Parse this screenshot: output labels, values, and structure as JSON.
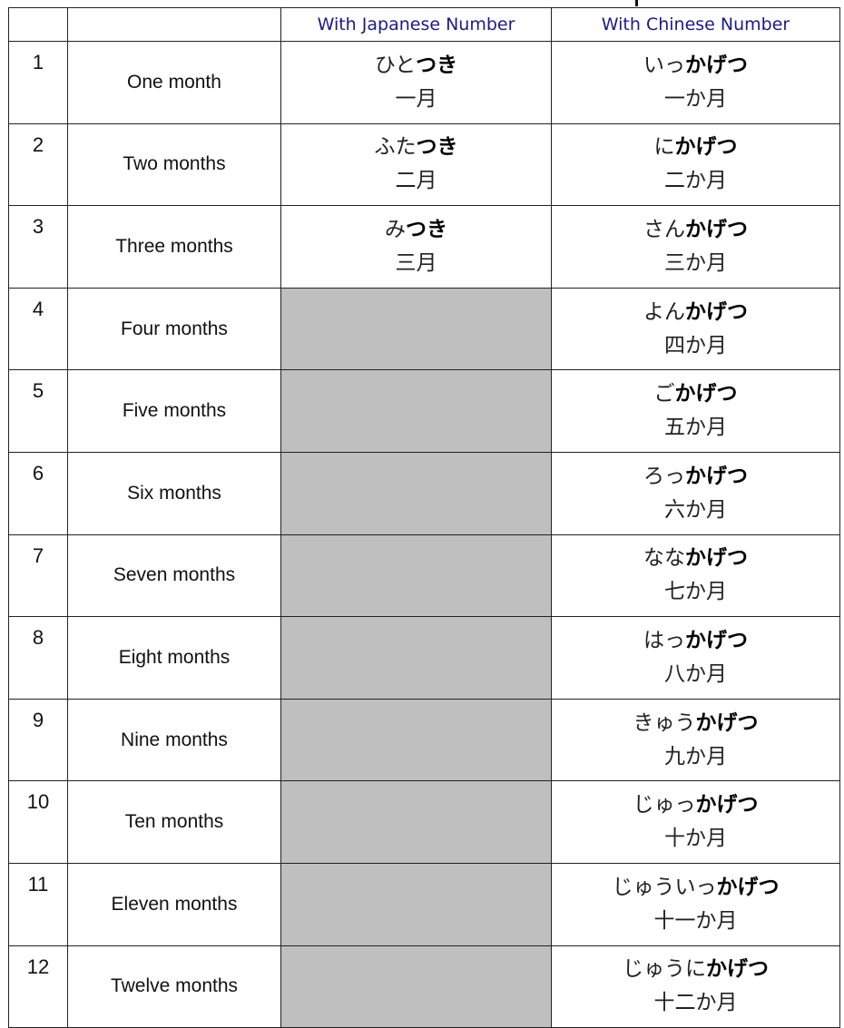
{
  "header": {
    "col1": "",
    "col2": "",
    "japanese": "With Japanese Number",
    "chinese": "With Chinese Number"
  },
  "colors": {
    "header_text": "#1a1a8c",
    "empty_cell": "#bfbfbf",
    "border": "#222222"
  },
  "rows": [
    {
      "num": "1",
      "english": "One month",
      "jp_kana_light": "ひと",
      "jp_kana_bold": "つき",
      "jp_kanji": "一月",
      "cn_kana_light": "いっ",
      "cn_kana_bold": "かげつ",
      "cn_kanji": "一か月"
    },
    {
      "num": "2",
      "english": "Two months",
      "jp_kana_light": "ふた",
      "jp_kana_bold": "つき",
      "jp_kanji": "二月",
      "cn_kana_light": "に",
      "cn_kana_bold": "かげつ",
      "cn_kanji": "二か月"
    },
    {
      "num": "3",
      "english": "Three months",
      "jp_kana_light": "み",
      "jp_kana_bold": "つき",
      "jp_kanji": "三月",
      "cn_kana_light": "さん",
      "cn_kana_bold": "かげつ",
      "cn_kanji": "三か月"
    },
    {
      "num": "4",
      "english": "Four months",
      "cn_kana_light": "よん",
      "cn_kana_bold": "かげつ",
      "cn_kanji": "四か月"
    },
    {
      "num": "5",
      "english": "Five months",
      "cn_kana_light": "ご",
      "cn_kana_bold": "かげつ",
      "cn_kanji": "五か月"
    },
    {
      "num": "6",
      "english": "Six months",
      "cn_kana_light": "ろっ",
      "cn_kana_bold": "かげつ",
      "cn_kanji": "六か月"
    },
    {
      "num": "7",
      "english": "Seven months",
      "cn_kana_light": "なな",
      "cn_kana_bold": "かげつ",
      "cn_kanji": "七か月"
    },
    {
      "num": "8",
      "english": "Eight months",
      "cn_kana_light": "はっ",
      "cn_kana_bold": "かげつ",
      "cn_kanji": "八か月"
    },
    {
      "num": "9",
      "english": "Nine months",
      "cn_kana_light": "きゅう",
      "cn_kana_bold": "かげつ",
      "cn_kanji": "九か月"
    },
    {
      "num": "10",
      "english": "Ten months",
      "cn_kana_light": "じゅっ",
      "cn_kana_bold": "かげつ",
      "cn_kanji": "十か月"
    },
    {
      "num": "11",
      "english": "Eleven months",
      "cn_kana_light": "じゅういっ",
      "cn_kana_bold": "かげつ",
      "cn_kanji": "十一か月"
    },
    {
      "num": "12",
      "english": "Twelve months",
      "cn_kana_light": "じゅうに",
      "cn_kana_bold": "かげつ",
      "cn_kanji": "十二か月"
    }
  ]
}
